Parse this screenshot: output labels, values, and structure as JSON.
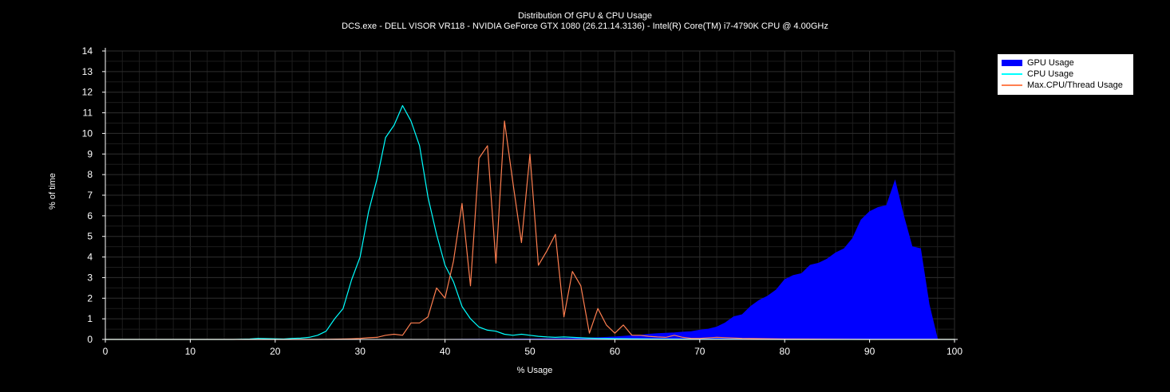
{
  "chart_data": {
    "type": "area",
    "title": "Distribution Of GPU & CPU Usage",
    "subtitle": "DCS.exe - DELL VISOR VR118 - NVIDIA GeForce GTX 1080 (26.21.14.3136) - Intel(R) Core(TM) i7-4790K CPU @ 4.00GHz",
    "xlabel": "% Usage",
    "ylabel": "% of time",
    "xlim": [
      0,
      100
    ],
    "ylim": [
      0,
      14
    ],
    "xticks": [
      0,
      10,
      20,
      30,
      40,
      50,
      60,
      70,
      80,
      90,
      100
    ],
    "yticks": [
      0,
      1,
      2,
      3,
      4,
      5,
      6,
      7,
      8,
      9,
      10,
      11,
      12,
      13,
      14
    ],
    "grid": true,
    "legend_position": "top-right",
    "series": [
      {
        "name": "GPU Usage",
        "kind": "area",
        "color": "#0000ff",
        "x": [
          0,
          10,
          20,
          30,
          40,
          50,
          55,
          58,
          60,
          61,
          62,
          63,
          64,
          65,
          66,
          67,
          68,
          69,
          70,
          71,
          72,
          73,
          74,
          75,
          76,
          77,
          78,
          79,
          80,
          81,
          82,
          83,
          84,
          85,
          86,
          87,
          88,
          89,
          90,
          91,
          92,
          93,
          94,
          95,
          96,
          97,
          98,
          99,
          100
        ],
        "y": [
          0,
          0,
          0,
          0,
          0,
          0.02,
          0.05,
          0.08,
          0.12,
          0.15,
          0.18,
          0.2,
          0.25,
          0.28,
          0.3,
          0.32,
          0.35,
          0.38,
          0.45,
          0.5,
          0.6,
          0.8,
          1.1,
          1.2,
          1.6,
          1.9,
          2.1,
          2.4,
          2.9,
          3.1,
          3.2,
          3.6,
          3.7,
          3.9,
          4.2,
          4.4,
          4.9,
          5.8,
          6.2,
          6.4,
          6.5,
          7.7,
          6.0,
          4.5,
          4.4,
          1.7,
          0,
          0,
          0
        ]
      },
      {
        "name": "CPU Usage",
        "kind": "line",
        "color": "#00ffff",
        "x": [
          0,
          5,
          10,
          15,
          17,
          18,
          19,
          20,
          21,
          22,
          23,
          24,
          25,
          26,
          27,
          28,
          29,
          30,
          31,
          32,
          33,
          34,
          35,
          36,
          37,
          38,
          39,
          40,
          41,
          42,
          43,
          44,
          45,
          46,
          47,
          48,
          49,
          50,
          51,
          52,
          53,
          54,
          55,
          56,
          57,
          58,
          60,
          62,
          65,
          70,
          80,
          90,
          100
        ],
        "y": [
          0,
          0,
          0,
          0,
          0.02,
          0.05,
          0.04,
          0.03,
          0.02,
          0.05,
          0.06,
          0.1,
          0.2,
          0.4,
          1.0,
          1.5,
          2.9,
          4.0,
          6.2,
          7.8,
          9.8,
          10.4,
          11.35,
          10.6,
          9.4,
          6.9,
          5.1,
          3.6,
          2.8,
          1.6,
          1.0,
          0.6,
          0.45,
          0.4,
          0.25,
          0.2,
          0.25,
          0.2,
          0.15,
          0.12,
          0.1,
          0.12,
          0.1,
          0.08,
          0.06,
          0.05,
          0.04,
          0.03,
          0.02,
          0.01,
          0,
          0,
          0
        ]
      },
      {
        "name": "Max.CPU/Thread Usage",
        "kind": "line",
        "color": "#ff7f50",
        "x": [
          0,
          10,
          20,
          25,
          28,
          29,
          30,
          31,
          32,
          33,
          34,
          35,
          36,
          37,
          38,
          39,
          40,
          41,
          42,
          43,
          44,
          45,
          46,
          47,
          48,
          49,
          50,
          51,
          52,
          53,
          54,
          55,
          56,
          57,
          58,
          59,
          60,
          61,
          62,
          63,
          64,
          65,
          66,
          67,
          68,
          69,
          70,
          72,
          75,
          80,
          90,
          100
        ],
        "y": [
          0,
          0,
          0,
          0,
          0.02,
          0.03,
          0.05,
          0.08,
          0.1,
          0.2,
          0.25,
          0.2,
          0.8,
          0.8,
          1.1,
          2.5,
          2.0,
          3.8,
          6.6,
          2.6,
          8.8,
          9.4,
          3.7,
          10.6,
          7.6,
          4.7,
          9.0,
          3.6,
          4.3,
          5.1,
          1.1,
          3.3,
          2.6,
          0.3,
          1.5,
          0.7,
          0.3,
          0.7,
          0.2,
          0.2,
          0.15,
          0.12,
          0.1,
          0.2,
          0.1,
          0.05,
          0.05,
          0.1,
          0.05,
          0.02,
          0,
          0
        ]
      }
    ]
  }
}
